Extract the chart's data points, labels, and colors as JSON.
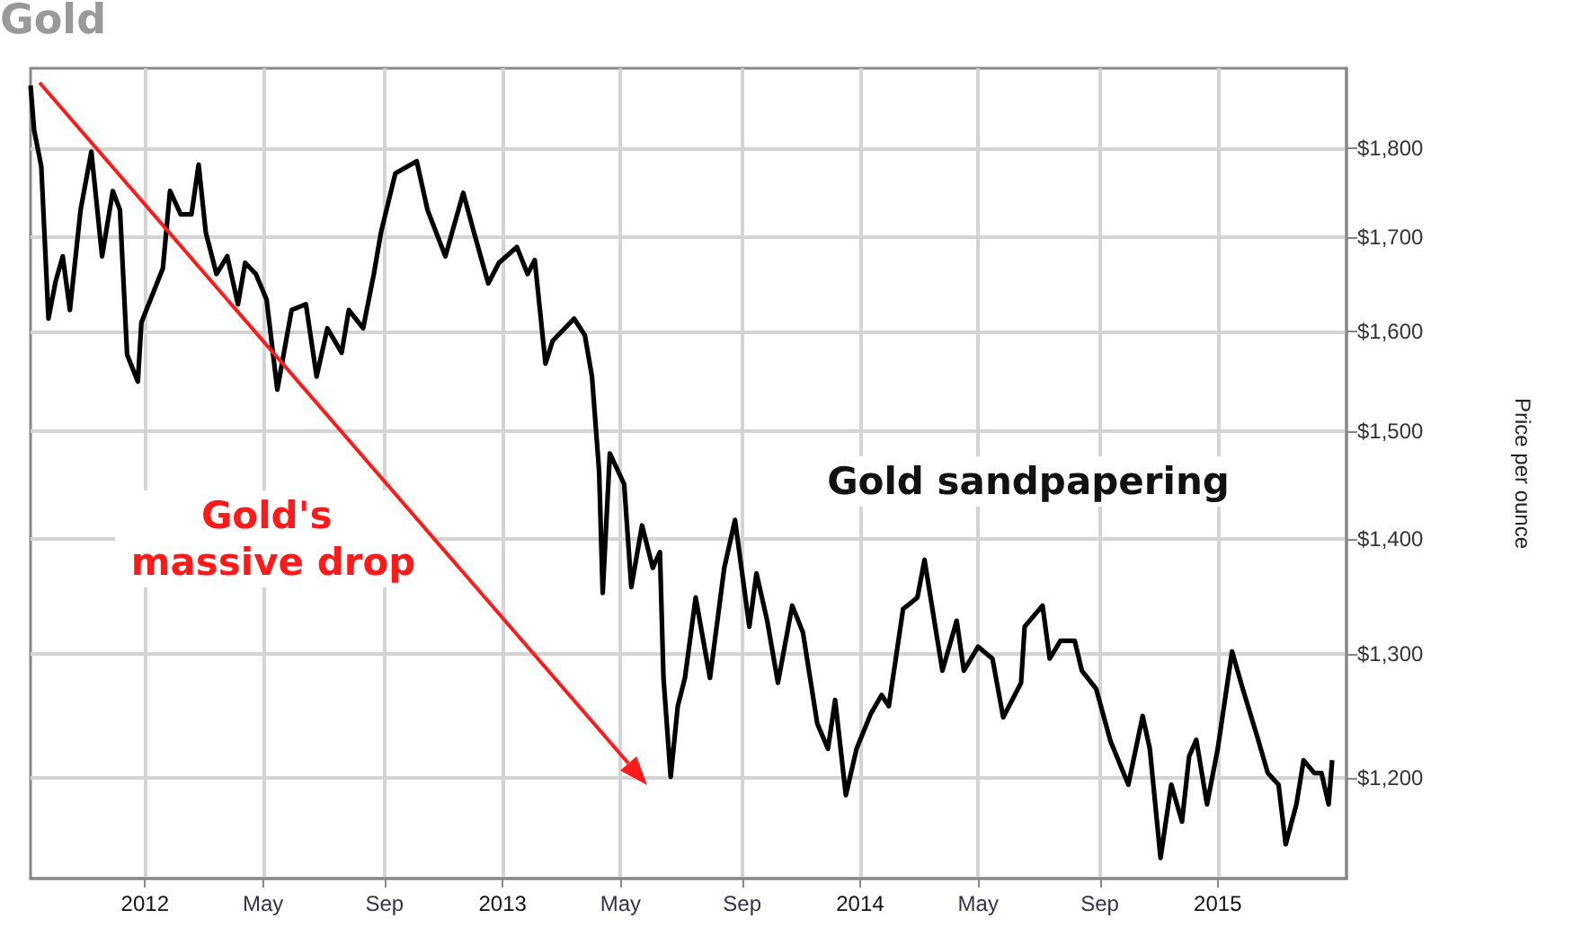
{
  "chart_data": {
    "type": "line",
    "title": "Gold",
    "ylabel": "Price per ounce",
    "x": [
      2011.68,
      2011.69,
      2011.71,
      2011.73,
      2011.75,
      2011.77,
      2011.79,
      2011.82,
      2011.85,
      2011.88,
      2011.91,
      2011.93,
      2011.95,
      2011.98,
      2011.99,
      2012.05,
      2012.07,
      2012.1,
      2012.13,
      2012.15,
      2012.17,
      2012.2,
      2012.23,
      2012.26,
      2012.28,
      2012.31,
      2012.34,
      2012.37,
      2012.41,
      2012.45,
      2012.48,
      2012.51,
      2012.55,
      2012.57,
      2012.61,
      2012.64,
      2012.66,
      2012.7,
      2012.76,
      2012.79,
      2012.84,
      2012.89,
      2012.92,
      2012.96,
      2012.99,
      2013.04,
      2013.07,
      2013.09,
      2013.12,
      2013.14,
      2013.2,
      2013.23,
      2013.25,
      2013.27,
      2013.28,
      2013.3,
      2013.34,
      2013.36,
      2013.39,
      2013.42,
      2013.44,
      2013.45,
      2013.47,
      2013.49,
      2013.51,
      2013.54,
      2013.58,
      2013.62,
      2013.65,
      2013.69,
      2013.71,
      2013.74,
      2013.77,
      2013.81,
      2013.84,
      2013.88,
      2013.91,
      2013.93,
      2013.96,
      2013.99,
      2014.03,
      2014.06,
      2014.08,
      2014.12,
      2014.16,
      2014.18,
      2014.21,
      2014.23,
      2014.27,
      2014.29,
      2014.33,
      2014.37,
      2014.4,
      2014.45,
      2014.46,
      2014.51,
      2014.53,
      2014.56,
      2014.6,
      2014.62,
      2014.66,
      2014.7,
      2014.75,
      2014.79,
      2014.81,
      2014.84,
      2014.87,
      2014.9,
      2014.92,
      2014.94,
      2014.97,
      2015.0,
      2015.04,
      2015.07,
      2015.11,
      2015.14,
      2015.17,
      2015.19,
      2015.22,
      2015.24,
      2015.27,
      2015.29,
      2015.31,
      2015.32
    ],
    "values": [
      1874,
      1821,
      1779,
      1613,
      1652,
      1679,
      1622,
      1730,
      1796,
      1679,
      1751,
      1730,
      1576,
      1549,
      1609,
      1666,
      1751,
      1725,
      1725,
      1781,
      1705,
      1660,
      1679,
      1628,
      1672,
      1660,
      1633,
      1541,
      1622,
      1628,
      1554,
      1603,
      1578,
      1622,
      1603,
      1660,
      1705,
      1771,
      1785,
      1730,
      1679,
      1749,
      1705,
      1650,
      1672,
      1689,
      1660,
      1675,
      1567,
      1590,
      1613,
      1596,
      1554,
      1462,
      1352,
      1479,
      1450,
      1357,
      1412,
      1374,
      1388,
      1280,
      1201,
      1257,
      1280,
      1348,
      1280,
      1374,
      1417,
      1323,
      1369,
      1328,
      1276,
      1341,
      1318,
      1243,
      1223,
      1262,
      1187,
      1223,
      1251,
      1266,
      1257,
      1338,
      1348,
      1381,
      1323,
      1286,
      1328,
      1286,
      1306,
      1296,
      1248,
      1276,
      1323,
      1341,
      1296,
      1311,
      1311,
      1286,
      1271,
      1229,
      1195,
      1249,
      1223,
      1140,
      1195,
      1167,
      1217,
      1230,
      1180,
      1223,
      1302,
      1271,
      1233,
      1204,
      1195,
      1150,
      1180,
      1214,
      1204,
      1204,
      1180,
      1214
    ],
    "color": "#000000",
    "marker": "none",
    "log": true,
    "xlim": [
      2011.68,
      2015.36
    ],
    "xticks": [
      {
        "value": 2012,
        "label": "2012"
      },
      {
        "value": 2012.33,
        "label": "May"
      },
      {
        "value": 2012.67,
        "label": "Sep"
      },
      {
        "value": 2013,
        "label": "2013"
      },
      {
        "value": 2013.33,
        "label": "May"
      },
      {
        "value": 2013.67,
        "label": "Sep"
      },
      {
        "value": 2014,
        "label": "2014"
      },
      {
        "value": 2014.33,
        "label": "May"
      },
      {
        "value": 2014.67,
        "label": "Sep"
      },
      {
        "value": 2015,
        "label": "2015"
      }
    ],
    "ylim": [
      1125,
      1895
    ],
    "yticks": [
      {
        "value": 1200,
        "label": "$1,200"
      },
      {
        "value": 1300,
        "label": "$1,300"
      },
      {
        "value": 1400,
        "label": "$1,400"
      },
      {
        "value": 1500,
        "label": "$1,500"
      },
      {
        "value": 1600,
        "label": "$1,600"
      },
      {
        "value": 1700,
        "label": "$1,700"
      },
      {
        "value": 1800,
        "label": "$1,800"
      }
    ],
    "grid": true,
    "annotations": [
      "Gold's massive drop",
      "Gold sandpapering"
    ]
  }
}
